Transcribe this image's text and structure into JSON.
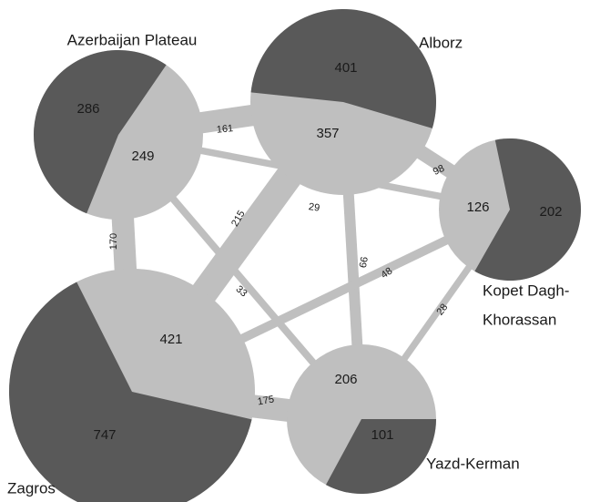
{
  "nodes": [
    {
      "label": [
        "Azerbaijan Plateau"
      ],
      "shared": 249,
      "endemic": 286
    },
    {
      "label": [
        "Alborz"
      ],
      "shared": 357,
      "endemic": 401
    },
    {
      "label": [
        "Kopet Dagh-",
        "Khorassan"
      ],
      "shared": 126,
      "endemic": 202
    },
    {
      "label": [
        "Zagros"
      ],
      "shared": 421,
      "endemic": 747
    },
    {
      "label": [
        "Yazd-Kerman"
      ],
      "shared": 206,
      "endemic": 101
    }
  ],
  "edges": [
    {
      "from": 0,
      "to": 1,
      "value": 161
    },
    {
      "from": 0,
      "to": 3,
      "value": 170
    },
    {
      "from": 0,
      "to": 2,
      "value": 29
    },
    {
      "from": 0,
      "to": 4,
      "value": 33
    },
    {
      "from": 1,
      "to": 3,
      "value": 215
    },
    {
      "from": 1,
      "to": 2,
      "value": 98
    },
    {
      "from": 1,
      "to": 4,
      "value": 66
    },
    {
      "from": 3,
      "to": 2,
      "value": 48
    },
    {
      "from": 4,
      "to": 2,
      "value": 28
    },
    {
      "from": 3,
      "to": 4,
      "value": 175
    }
  ]
}
